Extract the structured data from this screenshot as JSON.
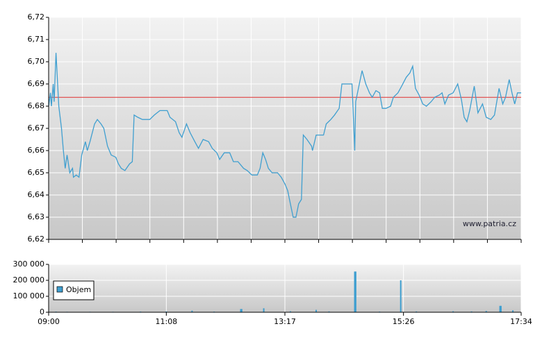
{
  "chart_data": [
    {
      "type": "line",
      "color": "#3f9fd0",
      "reference_line": 6.684,
      "reference_color": "#e03030",
      "watermark": "www.patria.cz",
      "xlim": [
        540,
        1054
      ],
      "ylim": [
        6.62,
        6.72
      ],
      "yticks": [
        {
          "value": 6.62,
          "label": "6,62"
        },
        {
          "value": 6.63,
          "label": "6,63"
        },
        {
          "value": 6.64,
          "label": "6,64"
        },
        {
          "value": 6.65,
          "label": "6,65"
        },
        {
          "value": 6.66,
          "label": "6,66"
        },
        {
          "value": 6.67,
          "label": "6,67"
        },
        {
          "value": 6.68,
          "label": "6,68"
        },
        {
          "value": 6.69,
          "label": "6,69"
        },
        {
          "value": 6.7,
          "label": "6,70"
        },
        {
          "value": 6.71,
          "label": "6,71"
        },
        {
          "value": 6.72,
          "label": "6,72"
        }
      ],
      "grid": true,
      "x": [
        540,
        542,
        543,
        545,
        546,
        548,
        551,
        554,
        556,
        558,
        560,
        563,
        566,
        567,
        570,
        573,
        576,
        580,
        582,
        585,
        590,
        593,
        597,
        600,
        604,
        608,
        613,
        616,
        619,
        623,
        628,
        631,
        633,
        637,
        642,
        650,
        655,
        661,
        669,
        672,
        678,
        682,
        685,
        690,
        694,
        699,
        703,
        708,
        714,
        718,
        723,
        726,
        731,
        737,
        741,
        746,
        752,
        756,
        761,
        767,
        770,
        773,
        776,
        779,
        783,
        789,
        793,
        797,
        800,
        803,
        806,
        809,
        812,
        815,
        817,
        821,
        826,
        827,
        831,
        835,
        839,
        842,
        847,
        851,
        856,
        859,
        865,
        870,
        873,
        874,
        877,
        881,
        885,
        889,
        892,
        896,
        900,
        903,
        907,
        912,
        915,
        920,
        924,
        929,
        933,
        936,
        939,
        943,
        947,
        951,
        956,
        960,
        965,
        968,
        971,
        975,
        980,
        985,
        989,
        992,
        995,
        998,
        1003,
        1007,
        1012,
        1016,
        1021,
        1025,
        1030,
        1034,
        1037,
        1041,
        1044,
        1047,
        1050,
        1054
      ],
      "values": [
        6.68,
        6.686,
        6.68,
        6.69,
        6.682,
        6.704,
        6.68,
        6.67,
        6.66,
        6.652,
        6.658,
        6.65,
        6.652,
        6.648,
        6.649,
        6.648,
        6.658,
        6.664,
        6.66,
        6.664,
        6.672,
        6.674,
        6.672,
        6.67,
        6.662,
        6.658,
        6.657,
        6.654,
        6.652,
        6.651,
        6.654,
        6.655,
        6.676,
        6.675,
        6.674,
        6.674,
        6.676,
        6.678,
        6.678,
        6.675,
        6.673,
        6.668,
        6.666,
        6.672,
        6.668,
        6.664,
        6.661,
        6.665,
        6.664,
        6.661,
        6.659,
        6.656,
        6.659,
        6.659,
        6.655,
        6.655,
        6.652,
        6.651,
        6.649,
        6.649,
        6.652,
        6.659,
        6.656,
        6.652,
        6.65,
        6.65,
        6.648,
        6.645,
        6.642,
        6.636,
        6.63,
        6.63,
        6.636,
        6.638,
        6.667,
        6.665,
        6.662,
        6.66,
        6.667,
        6.667,
        6.667,
        6.672,
        6.674,
        6.676,
        6.679,
        6.69,
        6.69,
        6.69,
        6.66,
        6.682,
        6.688,
        6.696,
        6.69,
        6.686,
        6.684,
        6.687,
        6.686,
        6.679,
        6.679,
        6.68,
        6.684,
        6.686,
        6.689,
        6.693,
        6.695,
        6.698,
        6.688,
        6.685,
        6.681,
        6.68,
        6.682,
        6.684,
        6.685,
        6.686,
        6.681,
        6.685,
        6.686,
        6.69,
        6.683,
        6.675,
        6.673,
        6.678,
        6.689,
        6.677,
        6.681,
        6.675,
        6.674,
        6.676,
        6.688,
        6.681,
        6.684,
        6.692,
        6.686,
        6.681,
        6.686,
        6.686
      ]
    },
    {
      "type": "bar",
      "xlim": [
        540,
        1054
      ],
      "ylim": [
        0,
        300000
      ],
      "yticks": [
        0,
        {
          "value": 100000,
          "label": "100 000"
        },
        {
          "value": 200000,
          "label": "200 000"
        },
        {
          "value": 300000,
          "label": "300 000"
        }
      ],
      "xticks": [
        {
          "value": 540,
          "label": "09:00"
        },
        {
          "value": 668,
          "label": "11:08"
        },
        {
          "value": 797,
          "label": "13:17"
        },
        {
          "value": 926,
          "label": "15:26"
        },
        {
          "value": 1054,
          "label": "17:34"
        }
      ],
      "grid": true,
      "x": [
        548,
        560,
        585,
        610,
        640,
        668,
        696,
        720,
        749,
        750,
        774,
        803,
        831,
        845,
        873,
        874,
        900,
        923,
        940,
        980,
        1000,
        1016,
        1031,
        1032,
        1045
      ],
      "series": [
        {
          "name": "Objem",
          "color": "#3f9fd0",
          "values": [
            4000,
            3000,
            3000,
            3000,
            4000,
            5000,
            10000,
            4000,
            20000,
            20000,
            25000,
            6000,
            15000,
            5000,
            255000,
            255000,
            4000,
            200000,
            5000,
            6000,
            5000,
            8000,
            40000,
            40000,
            12000
          ]
        }
      ]
    }
  ]
}
